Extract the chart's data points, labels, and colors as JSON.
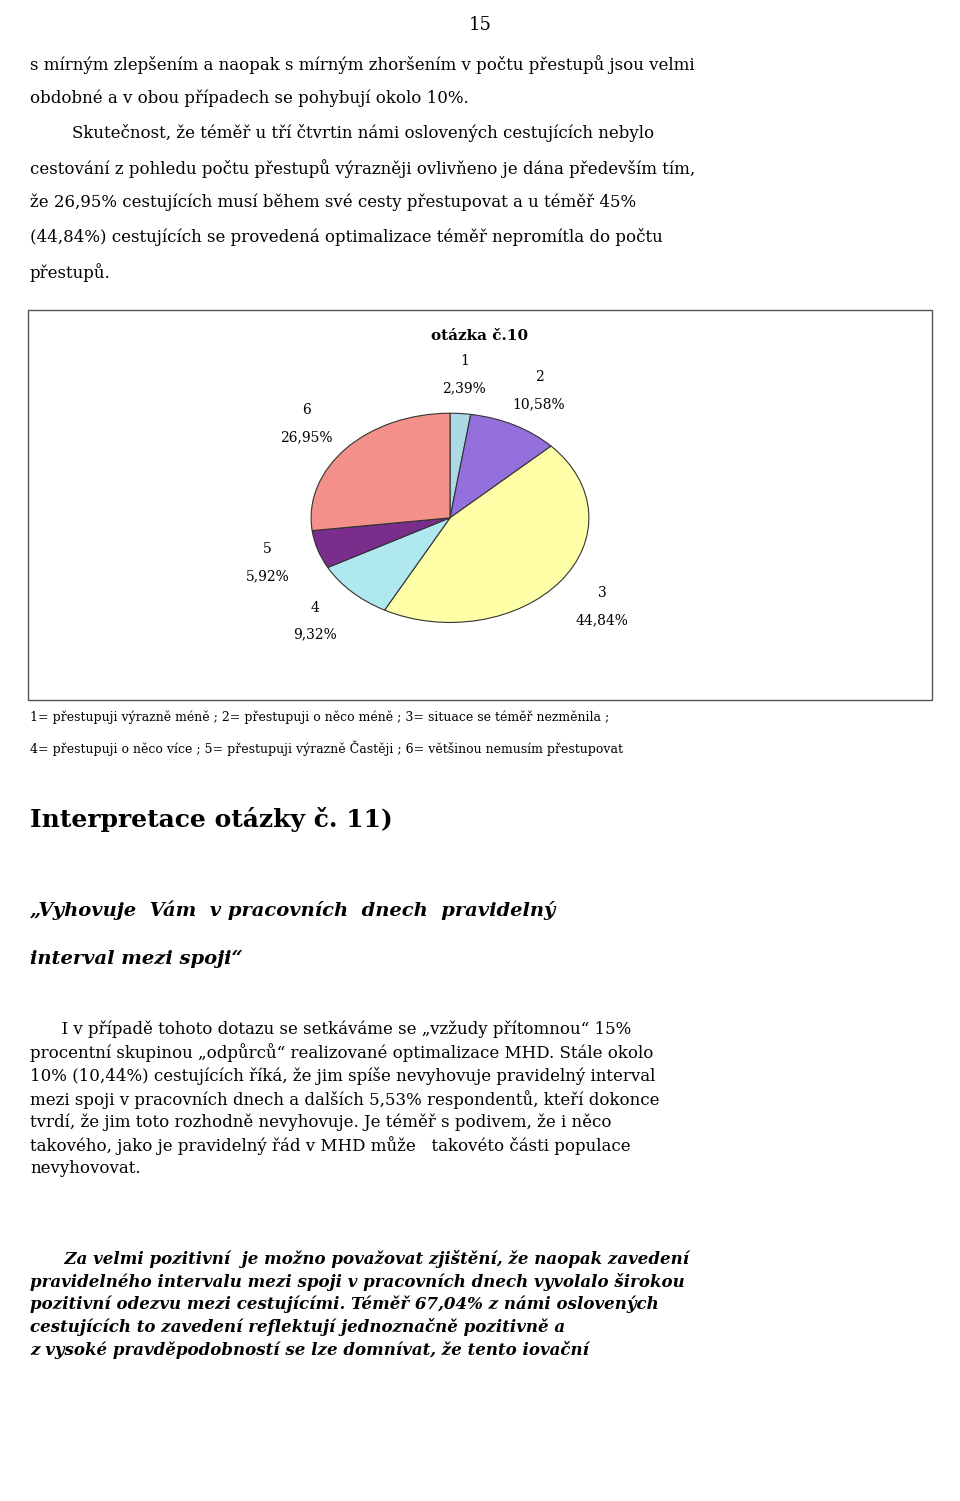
{
  "title": "otázka č.10",
  "slices": [
    {
      "label": "1",
      "pct_str": "2,39%",
      "value": 2.39,
      "color": "#ADD8E6"
    },
    {
      "label": "2",
      "pct_str": "10,58%",
      "value": 10.58,
      "color": "#9370DB"
    },
    {
      "label": "3",
      "pct_str": "44,84%",
      "value": 44.84,
      "color": "#FFFFA8"
    },
    {
      "label": "4",
      "pct_str": "9,32%",
      "value": 9.32,
      "color": "#B0E8F0"
    },
    {
      "label": "5",
      "pct_str": "5,92%",
      "value": 5.92,
      "color": "#7B2D8B"
    },
    {
      "label": "6",
      "pct_str": "26,95%",
      "value": 26.95,
      "color": "#F4908A"
    }
  ],
  "legend_lines": [
    "1= přestupuji výrazně méně ; 2= přestupuji o něco méně ; 3= situace se téměř nezměnila ;",
    "4= přestupuji o něco více ; 5= přestupuji výrazně Častěji ; 6= většinou nemusím přestupovat"
  ],
  "page_number": "15",
  "para_lines": [
    "s mírným zlepšením a naopak s mírným zhoršením v počtu přestupů jsou velmi",
    "obdobné a v obou případech se pohybují okolo 10%.",
    "        Skutečnost, že téměř u tří čtvrtin námi oslovených cestujících nebylo",
    "cestování z pohledu počtu přestupů výrazněji ovlivňeno je dána především tím,",
    "že 26,95% cestujících musí během své cesty přestupovat a u téměř 45%",
    "(44,84%) cestujících se provedená optimalizace téměř nepromítla do počtu",
    "přestupů."
  ],
  "interp_title": "Interpretace otázky č. 11)",
  "interp_italic_line1": "„Vyhovuje  Vám  v pracovních  dnech  pravidelný",
  "interp_italic_line2": "interval mezi spoji“",
  "startangle": 90,
  "label_fontsize": 10,
  "pct_fontsize": 10,
  "title_fontsize": 11,
  "legend_fontsize": 9,
  "body_fontsize": 12,
  "interp_title_fontsize": 18,
  "interp_italic_fontsize": 14
}
